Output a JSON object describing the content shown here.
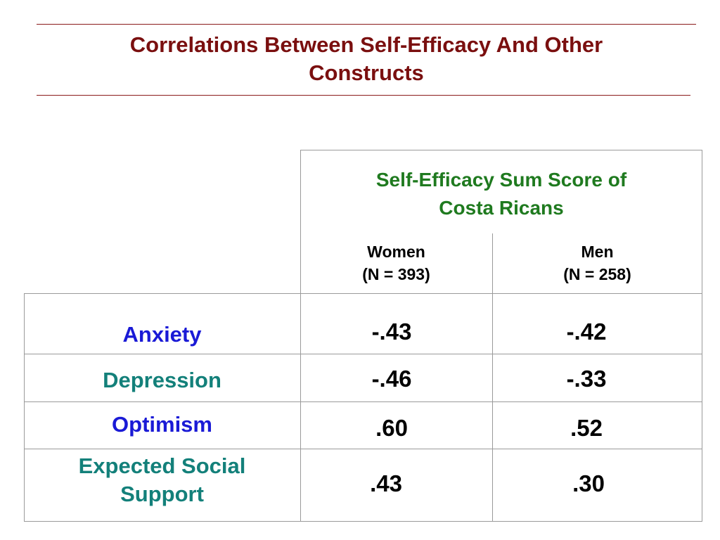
{
  "slide": {
    "title_line1": "Correlations Between Self-Efficacy And Other",
    "title_line2": "Constructs"
  },
  "table": {
    "group_header_line1": "Self-Efficacy Sum Score of",
    "group_header_line2": "Costa Ricans",
    "columns": [
      {
        "name": "Women",
        "n": "(N = 393)"
      },
      {
        "name": "Men",
        "n": "(N = 258)"
      }
    ],
    "rows": [
      {
        "label_line1": "Anxiety",
        "label_line2": "",
        "women": "-.43",
        "men": "-.42",
        "label_color": "#1a1ad6"
      },
      {
        "label_line1": "Depression",
        "label_line2": "",
        "women": "-.46",
        "men": "-.33",
        "label_color": "#13807a"
      },
      {
        "label_line1": "Optimism",
        "label_line2": "",
        "women": ".60",
        "men": ".52",
        "label_color": "#1a1ad6"
      },
      {
        "label_line1": "Expected Social",
        "label_line2": "Support",
        "women": ".43",
        "men": ".30",
        "label_color": "#13807a"
      }
    ]
  },
  "colors": {
    "title": "#7a0f0f",
    "rules": "#8b1a1a",
    "group_header": "#1f7a1f",
    "grid": "#9a9a9a"
  }
}
